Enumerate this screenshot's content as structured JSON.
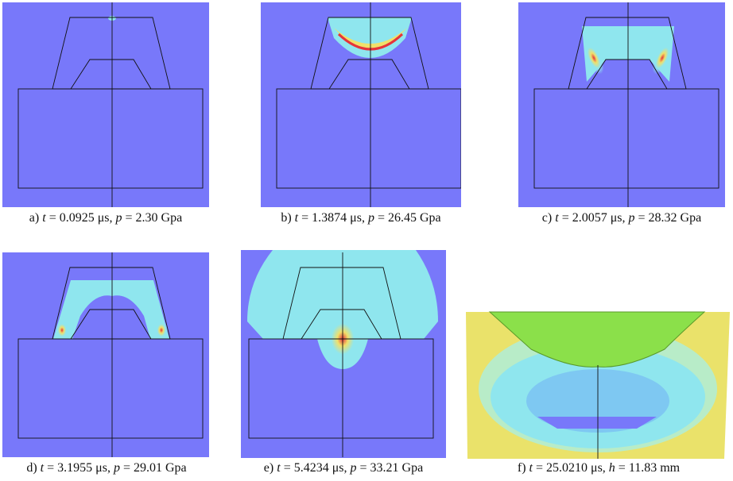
{
  "panels": [
    {
      "label": "a)",
      "var1": "t",
      "val1": "= 0.0925 μs,",
      "var2": "p",
      "val2": "= 2.30 Gpa"
    },
    {
      "label": "b)",
      "var1": "t",
      "val1": "= 1.3874 μs,",
      "var2": "p",
      "val2": "= 26.45 Gpa"
    },
    {
      "label": "c)",
      "var1": "t",
      "val1": "= 2.0057 μs,",
      "var2": "p",
      "val2": "= 28.32 Gpa"
    },
    {
      "label": "d)",
      "var1": "t",
      "val1": "= 3.1955 μs,",
      "var2": "p",
      "val2": "= 29.01 Gpa"
    },
    {
      "label": "e)",
      "var1": "t",
      "val1": "= 5.4234 μs,",
      "var2": "p",
      "val2": "= 33.21 Gpa"
    },
    {
      "label": "f)",
      "var1": "t",
      "val1": "= 25.0210 μs,",
      "var2": "h",
      "val2": "= 11.83 mm"
    }
  ]
}
